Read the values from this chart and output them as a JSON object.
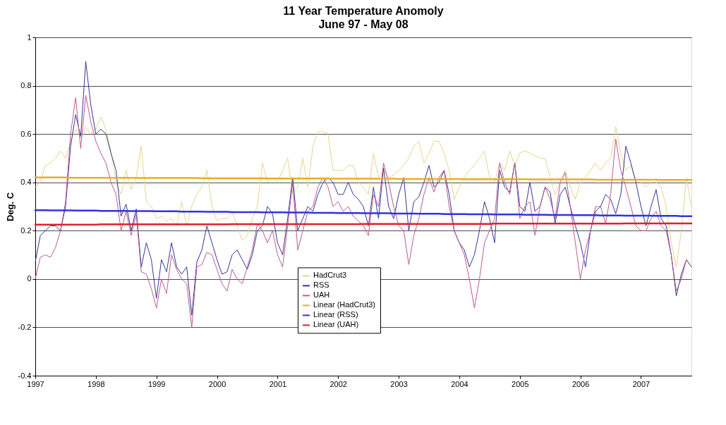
{
  "chart_data": {
    "type": "line",
    "title": "11 Year Temperature Anomoly",
    "subtitle": "June 97 - May 08",
    "ylabel": "Deg. C",
    "categories": [
      "1997",
      null,
      null,
      null,
      null,
      null,
      null,
      null,
      null,
      null,
      null,
      null,
      "1998",
      null,
      null,
      null,
      null,
      null,
      null,
      null,
      null,
      null,
      null,
      null,
      "1999",
      null,
      null,
      null,
      null,
      null,
      null,
      null,
      null,
      null,
      null,
      null,
      "2000",
      null,
      null,
      null,
      null,
      null,
      null,
      null,
      null,
      null,
      null,
      null,
      "2001",
      null,
      null,
      null,
      null,
      null,
      null,
      null,
      null,
      null,
      null,
      null,
      "2002",
      null,
      null,
      null,
      null,
      null,
      null,
      null,
      null,
      null,
      null,
      null,
      "2003",
      null,
      null,
      null,
      null,
      null,
      null,
      null,
      null,
      null,
      null,
      null,
      "2004",
      null,
      null,
      null,
      null,
      null,
      null,
      null,
      null,
      null,
      null,
      null,
      "2005",
      null,
      null,
      null,
      null,
      null,
      null,
      null,
      null,
      null,
      null,
      null,
      "2006",
      null,
      null,
      null,
      null,
      null,
      null,
      null,
      null,
      null,
      null,
      null,
      "2007",
      null,
      null,
      null,
      null,
      null,
      null,
      null,
      null,
      null,
      null
    ],
    "ylim": [
      -0.4,
      1
    ],
    "yticks": [
      -0.4,
      -0.2,
      0,
      0.2,
      0.4,
      0.6,
      0.8,
      1
    ],
    "grid": "y",
    "legend": "bottom",
    "line_style": "solid",
    "marker": "none",
    "series": [
      {
        "name": "HadCrut3",
        "color": "#e6d68c",
        "values": [
          0.38,
          0.4,
          0.47,
          0.48,
          0.5,
          0.53,
          0.5,
          0.57,
          0.62,
          0.58,
          0.63,
          0.6,
          0.62,
          0.67,
          0.62,
          0.53,
          0.4,
          0.35,
          0.45,
          0.37,
          0.42,
          0.55,
          0.32,
          0.3,
          0.25,
          0.26,
          0.24,
          0.25,
          0.22,
          0.32,
          0.22,
          0.3,
          0.35,
          0.38,
          0.45,
          0.3,
          0.24,
          0.25,
          0.25,
          0.28,
          0.22,
          0.16,
          0.18,
          0.25,
          0.3,
          0.48,
          0.4,
          0.42,
          0.4,
          0.45,
          0.5,
          0.35,
          0.38,
          0.5,
          0.38,
          0.55,
          0.61,
          0.61,
          0.6,
          0.45,
          0.45,
          0.45,
          0.47,
          0.47,
          0.4,
          0.38,
          0.35,
          0.52,
          0.42,
          0.45,
          0.42,
          0.43,
          0.45,
          0.47,
          0.5,
          0.55,
          0.57,
          0.48,
          0.52,
          0.57,
          0.57,
          0.52,
          0.45,
          0.33,
          0.38,
          0.42,
          0.45,
          0.47,
          0.5,
          0.53,
          0.42,
          0.4,
          0.48,
          0.45,
          0.53,
          0.47,
          0.52,
          0.53,
          0.52,
          0.51,
          0.5,
          0.5,
          0.42,
          0.35,
          0.4,
          0.45,
          0.38,
          0.33,
          0.4,
          0.42,
          0.45,
          0.48,
          0.45,
          0.48,
          0.5,
          0.63,
          0.52,
          0.45,
          0.47,
          0.4,
          0.4,
          0.38,
          0.4,
          0.4,
          0.38,
          0.3,
          0.15,
          0.05,
          0.2,
          0.42,
          0.3
        ]
      },
      {
        "name": "RSS",
        "color": "#34349a",
        "values": [
          0.07,
          0.18,
          0.2,
          0.22,
          0.22,
          0.2,
          0.3,
          0.55,
          0.68,
          0.59,
          0.9,
          0.72,
          0.6,
          0.62,
          0.6,
          0.52,
          0.45,
          0.26,
          0.31,
          0.2,
          0.29,
          0.05,
          0.15,
          0.08,
          -0.08,
          0.08,
          0.03,
          0.15,
          0.05,
          0.02,
          0.05,
          -0.15,
          0.07,
          0.12,
          0.22,
          0.15,
          0.08,
          0.02,
          0.03,
          0.1,
          0.12,
          0.08,
          0.04,
          0.1,
          0.2,
          0.22,
          0.3,
          0.27,
          0.15,
          0.1,
          0.25,
          0.42,
          0.2,
          0.25,
          0.3,
          0.28,
          0.35,
          0.4,
          0.42,
          0.4,
          0.35,
          0.35,
          0.4,
          0.35,
          0.33,
          0.3,
          0.22,
          0.38,
          0.25,
          0.46,
          0.3,
          0.25,
          0.35,
          0.42,
          0.2,
          0.32,
          0.34,
          0.4,
          0.47,
          0.38,
          0.4,
          0.45,
          0.35,
          0.2,
          0.15,
          0.12,
          0.05,
          0.1,
          0.2,
          0.32,
          0.25,
          0.15,
          0.45,
          0.38,
          0.36,
          0.48,
          0.3,
          0.28,
          0.4,
          0.28,
          0.3,
          0.38,
          0.36,
          0.23,
          0.35,
          0.38,
          0.3,
          0.22,
          0.15,
          0.05,
          0.2,
          0.28,
          0.3,
          0.35,
          0.33,
          0.27,
          0.35,
          0.55,
          0.48,
          0.4,
          0.3,
          0.22,
          0.3,
          0.37,
          0.25,
          0.22,
          0.1,
          -0.07,
          0.02,
          0.08,
          0.05
        ]
      },
      {
        "name": "UAH",
        "color": "#c05a8c",
        "values": [
          0.0,
          0.09,
          0.1,
          0.09,
          0.13,
          0.2,
          0.32,
          0.6,
          0.75,
          0.54,
          0.76,
          0.65,
          0.57,
          0.52,
          0.48,
          0.4,
          0.35,
          0.2,
          0.28,
          0.18,
          0.27,
          0.03,
          0.02,
          -0.04,
          -0.12,
          0.0,
          -0.06,
          0.1,
          0.04,
          0.0,
          -0.02,
          -0.2,
          0.05,
          0.06,
          0.11,
          0.1,
          0.04,
          -0.02,
          -0.05,
          0.04,
          0.0,
          -0.02,
          0.05,
          0.12,
          0.23,
          0.2,
          0.15,
          0.2,
          0.1,
          0.05,
          0.22,
          0.4,
          0.12,
          0.2,
          0.28,
          0.3,
          0.38,
          0.42,
          0.38,
          0.3,
          0.32,
          0.28,
          0.3,
          0.26,
          0.24,
          0.22,
          0.18,
          0.35,
          0.3,
          0.48,
          0.4,
          0.3,
          0.22,
          0.2,
          0.06,
          0.18,
          0.25,
          0.35,
          0.42,
          0.36,
          0.42,
          0.45,
          0.3,
          0.2,
          0.15,
          0.1,
          0.0,
          -0.12,
          0.0,
          0.15,
          0.2,
          0.25,
          0.48,
          0.4,
          0.35,
          0.48,
          0.25,
          0.3,
          0.32,
          0.18,
          0.3,
          0.38,
          0.33,
          0.25,
          0.4,
          0.44,
          0.3,
          0.15,
          0.0,
          0.12,
          0.2,
          0.3,
          0.3,
          0.23,
          0.35,
          0.58,
          0.45,
          0.38,
          0.3,
          0.22,
          0.2,
          0.2,
          0.25,
          0.28,
          0.22,
          0.2,
          0.1,
          -0.05,
          0.0,
          0.08,
          0.05
        ]
      },
      {
        "name": "Linear (HadCrut3)",
        "color": "#e8b020",
        "values": [
          0.42,
          0.42,
          0.42,
          0.42,
          0.42,
          0.42,
          0.42,
          0.419,
          0.419,
          0.419,
          0.419,
          0.419,
          0.419,
          0.419,
          0.419,
          0.419,
          0.419,
          0.419,
          0.419,
          0.419,
          0.418,
          0.418,
          0.418,
          0.418,
          0.418,
          0.418,
          0.418,
          0.418,
          0.418,
          0.418,
          0.418,
          0.418,
          0.418,
          0.417,
          0.417,
          0.417,
          0.417,
          0.417,
          0.417,
          0.417,
          0.417,
          0.417,
          0.417,
          0.417,
          0.417,
          0.417,
          0.416,
          0.416,
          0.416,
          0.416,
          0.416,
          0.416,
          0.416,
          0.416,
          0.416,
          0.416,
          0.416,
          0.416,
          0.416,
          0.415,
          0.415,
          0.415,
          0.415,
          0.415,
          0.415,
          0.415,
          0.415,
          0.415,
          0.415,
          0.415,
          0.415,
          0.415,
          0.414,
          0.414,
          0.414,
          0.414,
          0.414,
          0.414,
          0.414,
          0.414,
          0.414,
          0.414,
          0.414,
          0.414,
          0.414,
          0.413,
          0.413,
          0.413,
          0.413,
          0.413,
          0.413,
          0.413,
          0.413,
          0.413,
          0.413,
          0.413,
          0.413,
          0.413,
          0.412,
          0.412,
          0.412,
          0.412,
          0.412,
          0.412,
          0.412,
          0.412,
          0.412,
          0.412,
          0.412,
          0.412,
          0.412,
          0.411,
          0.411,
          0.411,
          0.411,
          0.411,
          0.411,
          0.411,
          0.411,
          0.411,
          0.411,
          0.411,
          0.411,
          0.411,
          0.41,
          0.41,
          0.41,
          0.41,
          0.41,
          0.41,
          0.41
        ]
      },
      {
        "name": "Linear (RSS)",
        "color": "#3333dd",
        "values": [
          0.285,
          0.285,
          0.285,
          0.284,
          0.284,
          0.284,
          0.284,
          0.284,
          0.283,
          0.283,
          0.283,
          0.283,
          0.283,
          0.282,
          0.282,
          0.282,
          0.282,
          0.282,
          0.282,
          0.281,
          0.281,
          0.281,
          0.281,
          0.281,
          0.28,
          0.28,
          0.28,
          0.28,
          0.28,
          0.279,
          0.279,
          0.279,
          0.279,
          0.279,
          0.278,
          0.278,
          0.278,
          0.278,
          0.278,
          0.277,
          0.277,
          0.277,
          0.277,
          0.277,
          0.277,
          0.276,
          0.276,
          0.276,
          0.276,
          0.276,
          0.275,
          0.275,
          0.275,
          0.275,
          0.275,
          0.274,
          0.274,
          0.274,
          0.274,
          0.274,
          0.273,
          0.273,
          0.273,
          0.273,
          0.273,
          0.272,
          0.272,
          0.272,
          0.272,
          0.272,
          0.272,
          0.271,
          0.271,
          0.271,
          0.271,
          0.271,
          0.27,
          0.27,
          0.27,
          0.27,
          0.27,
          0.269,
          0.269,
          0.269,
          0.269,
          0.269,
          0.268,
          0.268,
          0.268,
          0.268,
          0.268,
          0.267,
          0.267,
          0.267,
          0.267,
          0.267,
          0.267,
          0.266,
          0.266,
          0.266,
          0.266,
          0.266,
          0.265,
          0.265,
          0.265,
          0.265,
          0.265,
          0.264,
          0.264,
          0.264,
          0.264,
          0.264,
          0.263,
          0.263,
          0.263,
          0.263,
          0.263,
          0.262,
          0.262,
          0.262,
          0.262,
          0.262,
          0.262,
          0.261,
          0.261,
          0.261,
          0.261,
          0.261,
          0.26,
          0.26,
          0.26
        ]
      },
      {
        "name": "Linear (UAH)",
        "color": "#e02030",
        "values": [
          0.225,
          0.225,
          0.225,
          0.225,
          0.225,
          0.225,
          0.225,
          0.225,
          0.225,
          0.225,
          0.225,
          0.225,
          0.225,
          0.226,
          0.226,
          0.226,
          0.226,
          0.226,
          0.226,
          0.226,
          0.226,
          0.226,
          0.226,
          0.226,
          0.226,
          0.226,
          0.226,
          0.226,
          0.226,
          0.226,
          0.226,
          0.226,
          0.226,
          0.226,
          0.226,
          0.226,
          0.226,
          0.226,
          0.226,
          0.227,
          0.227,
          0.227,
          0.227,
          0.227,
          0.227,
          0.227,
          0.227,
          0.227,
          0.227,
          0.227,
          0.227,
          0.227,
          0.227,
          0.227,
          0.227,
          0.227,
          0.227,
          0.227,
          0.227,
          0.227,
          0.227,
          0.227,
          0.227,
          0.227,
          0.227,
          0.228,
          0.228,
          0.228,
          0.228,
          0.228,
          0.228,
          0.228,
          0.228,
          0.228,
          0.228,
          0.228,
          0.228,
          0.228,
          0.228,
          0.228,
          0.228,
          0.228,
          0.228,
          0.228,
          0.228,
          0.228,
          0.228,
          0.228,
          0.228,
          0.228,
          0.228,
          0.229,
          0.229,
          0.229,
          0.229,
          0.229,
          0.229,
          0.229,
          0.229,
          0.229,
          0.229,
          0.229,
          0.229,
          0.229,
          0.229,
          0.229,
          0.229,
          0.229,
          0.229,
          0.229,
          0.229,
          0.229,
          0.229,
          0.229,
          0.229,
          0.229,
          0.229,
          0.23,
          0.23,
          0.23,
          0.23,
          0.23,
          0.23,
          0.23,
          0.23,
          0.23,
          0.23,
          0.23,
          0.23,
          0.23,
          0.23
        ]
      }
    ]
  }
}
